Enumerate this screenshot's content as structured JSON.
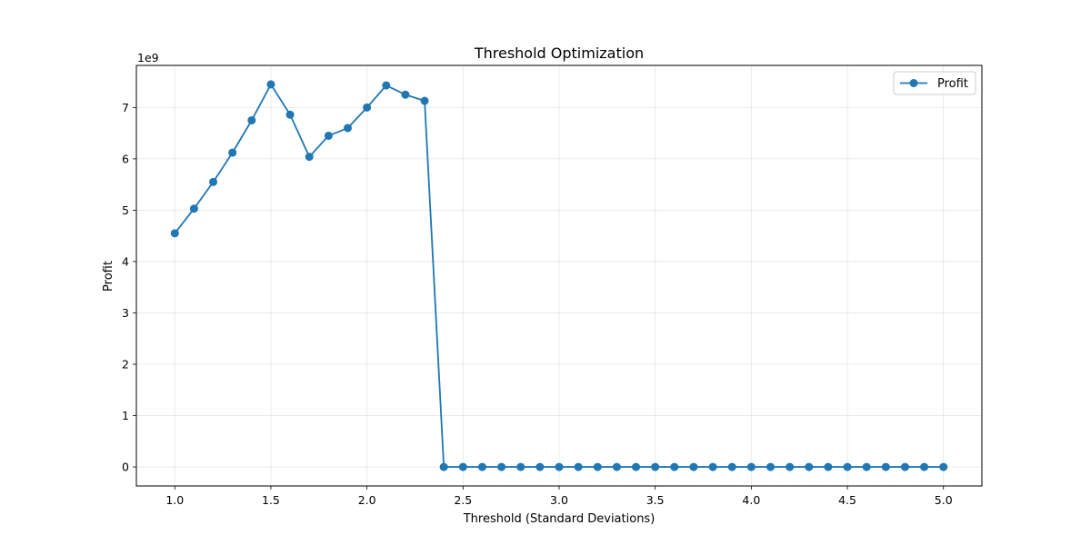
{
  "chart_data": {
    "type": "line",
    "title": "Threshold Optimization",
    "xlabel": "Threshold (Standard Deviations)",
    "ylabel": "Profit",
    "y_offset_label": "1e9",
    "y_scale": 1000000000,
    "xlim": [
      0.8,
      5.2
    ],
    "ylim": [
      -0.37,
      7.82
    ],
    "x_ticks": [
      1.0,
      1.5,
      2.0,
      2.5,
      3.0,
      3.5,
      4.0,
      4.5,
      5.0
    ],
    "x_tick_labels": [
      "1.0",
      "1.5",
      "2.0",
      "2.5",
      "3.0",
      "3.5",
      "4.0",
      "4.5",
      "5.0"
    ],
    "y_ticks": [
      0,
      1,
      2,
      3,
      4,
      5,
      6,
      7
    ],
    "y_tick_labels": [
      "0",
      "1",
      "2",
      "3",
      "4",
      "5",
      "6",
      "7"
    ],
    "grid": true,
    "legend_position": "top-right",
    "series": [
      {
        "name": "Profit",
        "color": "#1f77b4",
        "marker": "circle",
        "x": [
          1.0,
          1.1,
          1.2,
          1.3,
          1.4,
          1.5,
          1.6,
          1.7,
          1.8,
          1.9,
          2.0,
          2.1,
          2.2,
          2.3,
          2.4,
          2.5,
          2.6,
          2.7,
          2.8,
          2.9,
          3.0,
          3.1,
          3.2,
          3.3,
          3.4,
          3.5,
          3.6,
          3.7,
          3.8,
          3.9,
          4.0,
          4.1,
          4.2,
          4.3,
          4.4,
          4.5,
          4.6,
          4.7,
          4.8,
          4.9,
          5.0
        ],
        "y": [
          4.55,
          5.03,
          5.55,
          6.12,
          6.75,
          7.45,
          6.86,
          6.04,
          6.45,
          6.6,
          7.0,
          7.43,
          7.25,
          7.13,
          0,
          0,
          0,
          0,
          0,
          0,
          0,
          0,
          0,
          0,
          0,
          0,
          0,
          0,
          0,
          0,
          0,
          0,
          0,
          0,
          0,
          0,
          0,
          0,
          0,
          0,
          0
        ]
      }
    ]
  }
}
